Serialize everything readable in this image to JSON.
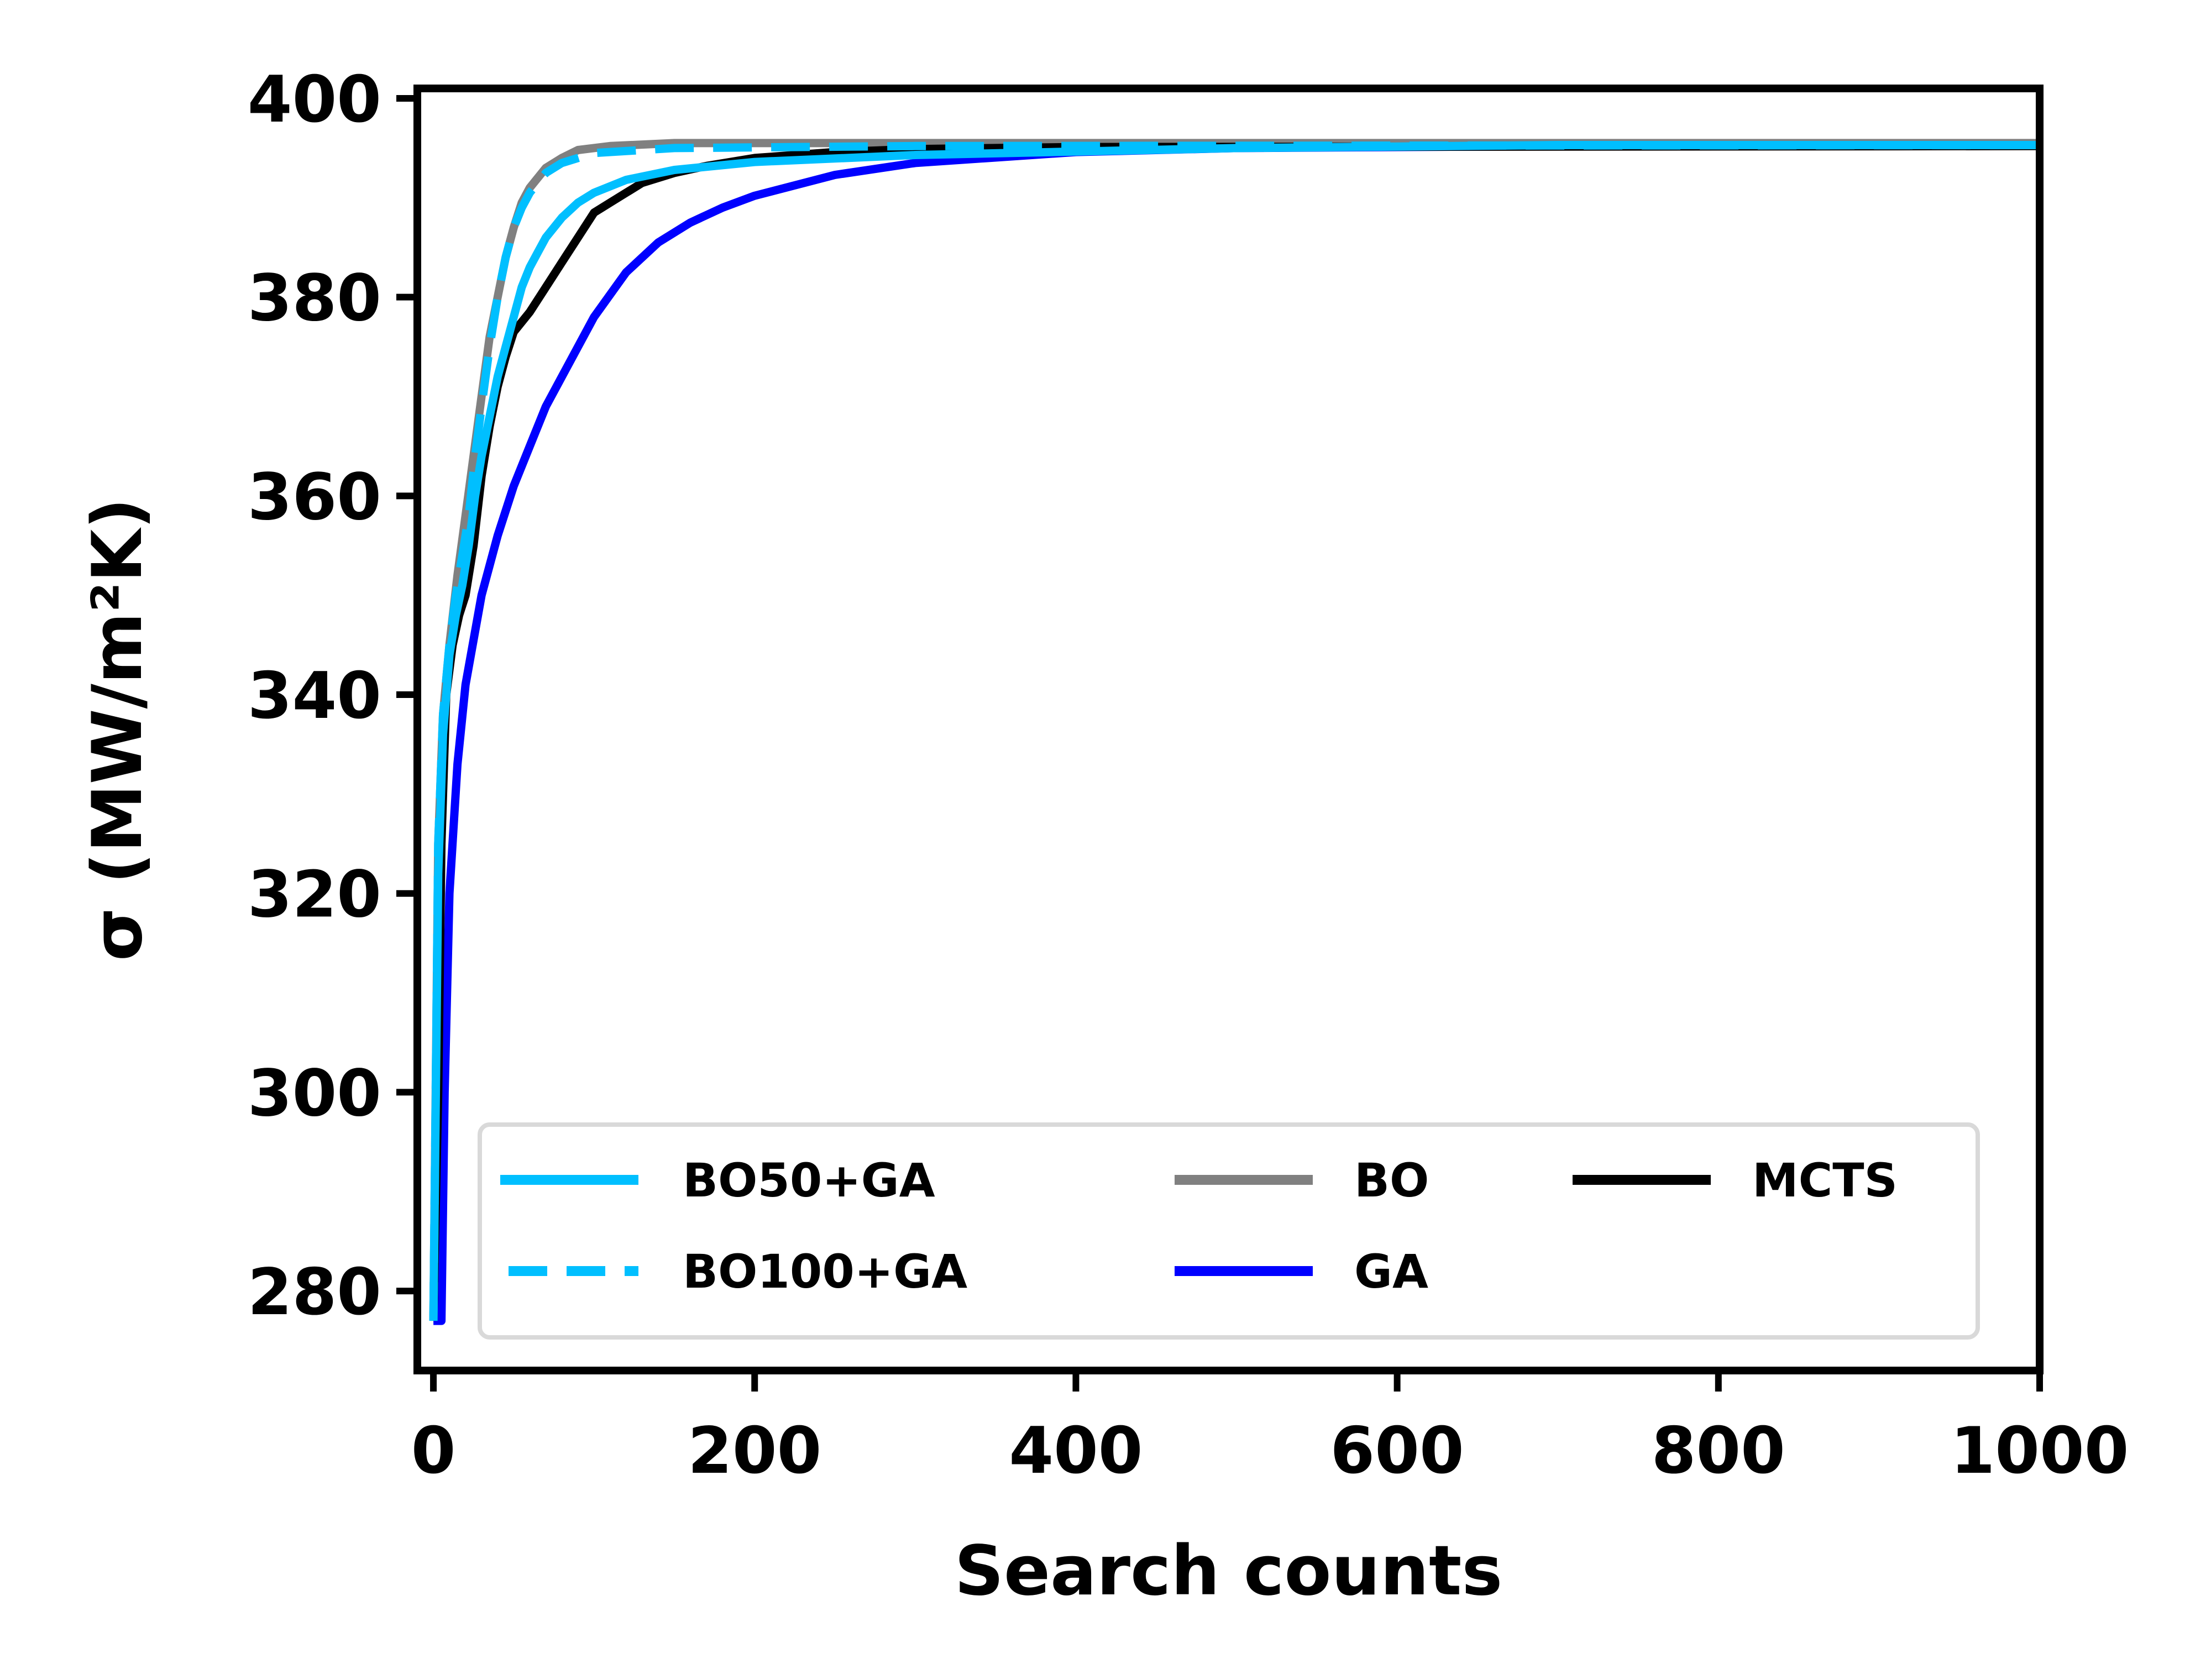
{
  "chart_data": {
    "type": "line",
    "title": "",
    "xlabel": "Search counts",
    "ylabel": "σ (MW/m²K)",
    "xlim": [
      -10,
      1000
    ],
    "ylim": [
      272,
      401
    ],
    "x_ticks": [
      0,
      200,
      400,
      600,
      800,
      1000
    ],
    "y_ticks": [
      280,
      300,
      320,
      340,
      360,
      380,
      400
    ],
    "grid": false,
    "legend": {
      "placement": "lower-right",
      "columns": 3
    },
    "series": [
      {
        "name": "BO50+GA",
        "color": "#00bfff",
        "style": "solid",
        "points": [
          [
            0,
            277
          ],
          [
            3,
            322
          ],
          [
            6,
            336
          ],
          [
            10,
            344
          ],
          [
            14,
            348
          ],
          [
            18,
            351
          ],
          [
            22,
            355
          ],
          [
            26,
            360
          ],
          [
            30,
            364
          ],
          [
            35,
            368
          ],
          [
            40,
            372
          ],
          [
            45,
            375
          ],
          [
            50,
            378
          ],
          [
            55,
            381
          ],
          [
            60,
            383
          ],
          [
            65,
            384.5
          ],
          [
            70,
            386
          ],
          [
            80,
            388
          ],
          [
            90,
            389.5
          ],
          [
            100,
            390.5
          ],
          [
            120,
            391.8
          ],
          [
            150,
            392.8
          ],
          [
            200,
            393.6
          ],
          [
            300,
            394.3
          ],
          [
            500,
            395
          ],
          [
            700,
            395.3
          ],
          [
            1000,
            395.3
          ]
        ]
      },
      {
        "name": "BO100+GA",
        "color": "#00bfff",
        "style": "dashed",
        "points": [
          [
            0,
            277
          ],
          [
            3,
            325
          ],
          [
            6,
            338
          ],
          [
            10,
            345
          ],
          [
            14,
            350
          ],
          [
            18,
            354
          ],
          [
            22,
            358
          ],
          [
            26,
            364
          ],
          [
            30,
            369
          ],
          [
            35,
            375
          ],
          [
            40,
            380
          ],
          [
            45,
            384
          ],
          [
            50,
            387
          ],
          [
            55,
            389
          ],
          [
            60,
            390.5
          ],
          [
            70,
            392.5
          ],
          [
            80,
            393.5
          ],
          [
            100,
            394.5
          ],
          [
            150,
            395
          ],
          [
            300,
            395.2
          ],
          [
            1000,
            395.3
          ]
        ]
      },
      {
        "name": "BO",
        "color": "#808080",
        "style": "solid",
        "points": [
          [
            0,
            277
          ],
          [
            3,
            325
          ],
          [
            6,
            338
          ],
          [
            10,
            345
          ],
          [
            15,
            352
          ],
          [
            20,
            358
          ],
          [
            25,
            364
          ],
          [
            30,
            370
          ],
          [
            35,
            376
          ],
          [
            40,
            380
          ],
          [
            45,
            384
          ],
          [
            50,
            387
          ],
          [
            55,
            389.5
          ],
          [
            60,
            391
          ],
          [
            70,
            393
          ],
          [
            80,
            394
          ],
          [
            90,
            394.8
          ],
          [
            110,
            395.2
          ],
          [
            150,
            395.5
          ],
          [
            250,
            395.5
          ],
          [
            1000,
            395.5
          ]
        ]
      },
      {
        "name": "GA",
        "color": "#0000ff",
        "style": "solid",
        "points": [
          [
            0,
            277
          ],
          [
            5,
            277
          ],
          [
            7,
            300
          ],
          [
            10,
            320
          ],
          [
            15,
            333
          ],
          [
            20,
            341
          ],
          [
            30,
            350
          ],
          [
            40,
            356
          ],
          [
            50,
            361
          ],
          [
            60,
            365
          ],
          [
            70,
            369
          ],
          [
            80,
            372
          ],
          [
            90,
            375
          ],
          [
            100,
            378
          ],
          [
            120,
            382.5
          ],
          [
            140,
            385.5
          ],
          [
            160,
            387.5
          ],
          [
            180,
            389
          ],
          [
            200,
            390.2
          ],
          [
            250,
            392.3
          ],
          [
            300,
            393.5
          ],
          [
            400,
            394.6
          ],
          [
            500,
            395
          ],
          [
            700,
            395.2
          ],
          [
            1000,
            395.3
          ]
        ]
      },
      {
        "name": "MCTS",
        "color": "#000000",
        "style": "solid",
        "points": [
          [
            0,
            277
          ],
          [
            3,
            300
          ],
          [
            5,
            325
          ],
          [
            8,
            340
          ],
          [
            12,
            345
          ],
          [
            16,
            348
          ],
          [
            20,
            350
          ],
          [
            25,
            355
          ],
          [
            30,
            362
          ],
          [
            35,
            367
          ],
          [
            40,
            371
          ],
          [
            45,
            374
          ],
          [
            50,
            376.5
          ],
          [
            60,
            378.5
          ],
          [
            70,
            381
          ],
          [
            80,
            383.5
          ],
          [
            90,
            386
          ],
          [
            100,
            388.5
          ],
          [
            110,
            389.5
          ],
          [
            120,
            390.5
          ],
          [
            130,
            391.5
          ],
          [
            150,
            392.5
          ],
          [
            170,
            393.2
          ],
          [
            200,
            394
          ],
          [
            250,
            394.6
          ],
          [
            300,
            394.9
          ],
          [
            400,
            395.1
          ],
          [
            1000,
            395.2
          ]
        ]
      }
    ]
  }
}
